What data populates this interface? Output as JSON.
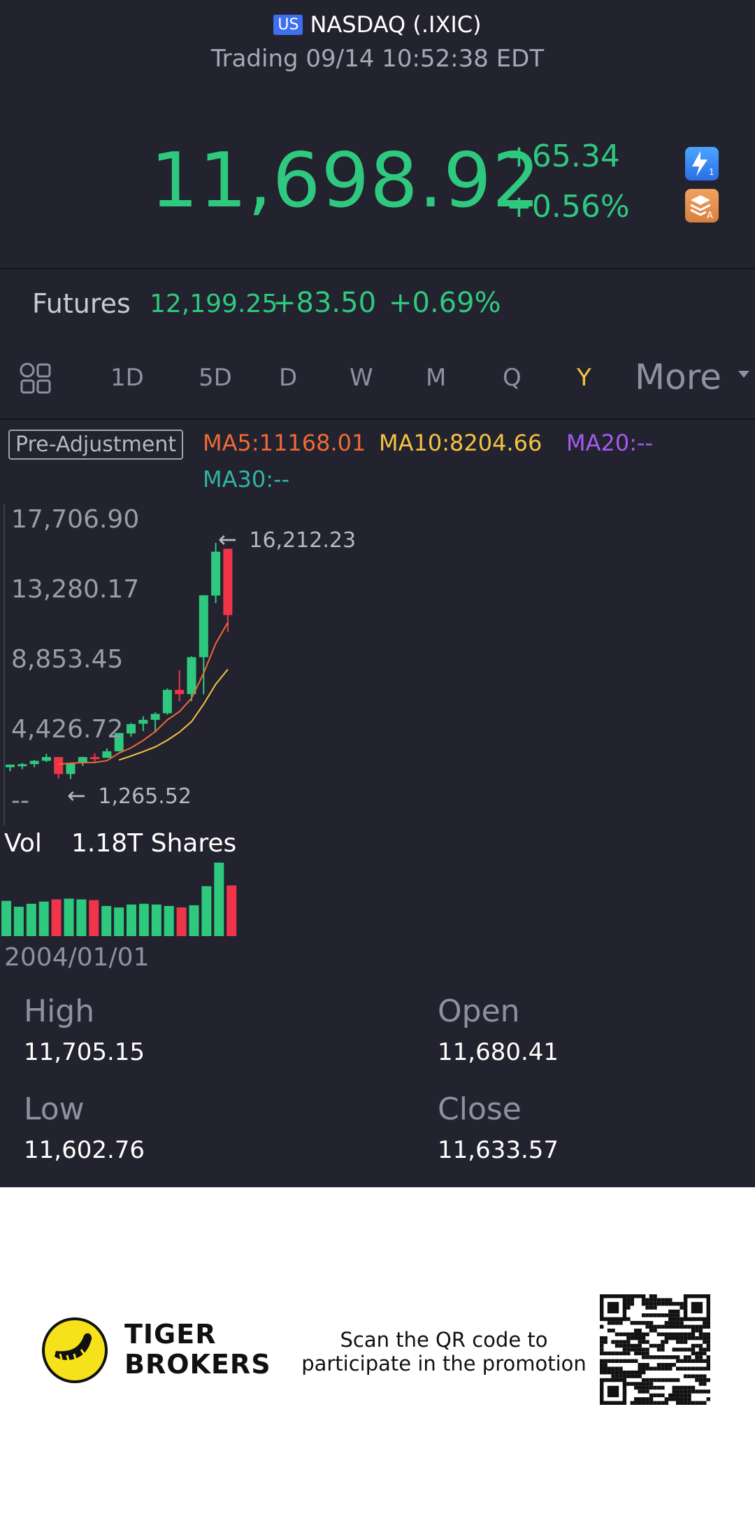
{
  "header": {
    "market_badge": "US",
    "title": "NASDAQ (.IXIC)",
    "status": "Trading 09/14 10:52:38 EDT"
  },
  "quote": {
    "price": "11,698.92",
    "change": "+65.34",
    "change_pct": "+0.56%"
  },
  "futures": {
    "label": "Futures",
    "price": "12,199.25",
    "change": "+83.50",
    "change_pct": "+0.69%"
  },
  "tabs": {
    "items": [
      "1D",
      "5D",
      "D",
      "W",
      "M",
      "Q",
      "Y"
    ],
    "active": "Y",
    "more": "More"
  },
  "indicators": {
    "adjust": "Pre-Adjustment",
    "ma5": "MA5:11168.01",
    "ma10": "MA10:8204.66",
    "ma20": "MA20:--",
    "ma30": "MA30:--",
    "colors": {
      "ma5": "#f06a35",
      "ma10": "#f5c242",
      "ma20": "#a45af0",
      "ma30": "#2fb4a6",
      "up": "#2ec97e",
      "down": "#f0354a"
    }
  },
  "chart": {
    "y_ticks": [
      "17,706.90",
      "13,280.17",
      "8,853.45",
      "4,426.72",
      "--"
    ],
    "high_annotation": "16,212.23",
    "low_annotation": "1,265.52",
    "volume_label": "Vol",
    "volume_value": "1.18T Shares",
    "start_date": "2004/01/01"
  },
  "chart_data": {
    "type": "candlestick",
    "x": [
      "2004",
      "2005",
      "2006",
      "2007",
      "2008",
      "2009",
      "2010",
      "2011",
      "2012",
      "2013",
      "2014",
      "2015",
      "2016",
      "2017",
      "2018",
      "2019",
      "2020",
      "2021",
      "2022"
    ],
    "open": [
      2006,
      2175,
      2205,
      2415,
      2652,
      1577,
      2269,
      2652,
      2605,
      3020,
      4143,
      4760,
      5007,
      5425,
      6903,
      6635,
      8973,
      12870,
      15832
    ],
    "close": [
      2175,
      2205,
      2415,
      2652,
      1577,
      2269,
      2652,
      2605,
      3020,
      4176,
      4736,
      5007,
      5383,
      6903,
      6635,
      8972,
      12888,
      15645,
      11633
    ],
    "high": [
      2178,
      2278,
      2470,
      2861,
      2661,
      2291,
      2675,
      2887,
      3196,
      4177,
      4814,
      5232,
      5487,
      6994,
      8133,
      9022,
      12899,
      16212,
      15832
    ],
    "low": [
      1750,
      1889,
      2012,
      2340,
      1295,
      1265,
      2091,
      2299,
      2631,
      3002,
      3946,
      4292,
      4210,
      5339,
      6190,
      6193,
      6631,
      12397,
      10565
    ],
    "volume_up_down": [
      "up",
      "up",
      "up",
      "up",
      "down",
      "up",
      "up",
      "down",
      "up",
      "up",
      "up",
      "up",
      "up",
      "up",
      "down",
      "up",
      "up",
      "up",
      "down"
    ],
    "volume_relative": [
      0.48,
      0.4,
      0.44,
      0.47,
      0.5,
      0.51,
      0.5,
      0.49,
      0.41,
      0.39,
      0.43,
      0.44,
      0.43,
      0.41,
      0.39,
      0.42,
      0.68,
      1.0,
      0.69
    ],
    "ma5": [
      null,
      null,
      null,
      null,
      2205,
      2264,
      2303,
      2315,
      2425,
      2905,
      3237,
      3705,
      4263,
      5007,
      5527,
      6370,
      7964,
      9835,
      11168
    ],
    "ma10": [
      null,
      null,
      null,
      null,
      null,
      null,
      null,
      null,
      null,
      2465,
      2721,
      2998,
      3295,
      3720,
      4226,
      4896,
      5996,
      7262,
      8204
    ],
    "ylim": [
      0,
      17706.9
    ]
  },
  "stats": {
    "high_label": "High",
    "high": "11,705.15",
    "open_label": "Open",
    "open": "11,680.41",
    "low_label": "Low",
    "low": "11,602.76",
    "close_label": "Close",
    "close": "11,633.57"
  },
  "promo": {
    "brand_line1": "TIGER",
    "brand_line2": "BROKERS",
    "text_line1": "Scan the QR code to",
    "text_line2": "participate in the promotion"
  }
}
